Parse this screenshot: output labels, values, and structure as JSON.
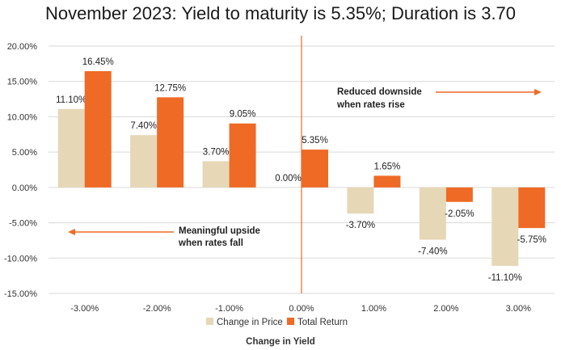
{
  "chart_data": {
    "type": "bar",
    "title": "November 2023: Yield to maturity is 5.35%; Duration is 3.70",
    "xlabel": "Change in Yield",
    "ylabel": "",
    "categories": [
      "-3.00%",
      "-2.00%",
      "-1.00%",
      "0.00%",
      "1.00%",
      "2.00%",
      "3.00%"
    ],
    "series": [
      {
        "name": "Change in Price",
        "values": [
          11.1,
          7.4,
          3.7,
          0.0,
          -3.7,
          -7.4,
          -11.1
        ],
        "labels": [
          "11.10%",
          "7.40%",
          "3.70%",
          "0.00%",
          "-3.70%",
          "-7.40%",
          "-11.10%"
        ]
      },
      {
        "name": "Total Return",
        "values": [
          16.45,
          12.75,
          9.05,
          5.35,
          1.65,
          -2.05,
          -5.75
        ],
        "labels": [
          "16.45%",
          "12.75%",
          "9.05%",
          "5.35%",
          "1.65%",
          "-2.05%",
          "-5.75%"
        ]
      }
    ],
    "ylim": [
      -15,
      20
    ],
    "yticks": [
      {
        "value": 20,
        "label": "20.00%"
      },
      {
        "value": 15,
        "label": "15.00%"
      },
      {
        "value": 10,
        "label": "10.00%"
      },
      {
        "value": 5,
        "label": "5.00%"
      },
      {
        "value": 0,
        "label": "0.00%"
      },
      {
        "value": -5,
        "label": "-5.00%"
      },
      {
        "value": -10,
        "label": "-10.00%"
      },
      {
        "value": -15,
        "label": "-15.00%"
      }
    ],
    "grid": true,
    "legend_position": "bottom",
    "colors": {
      "change_in_price": "#e6d7b6",
      "total_return": "#ee6a25",
      "grid": "#d9d9d9",
      "divider": "#ee6a25"
    },
    "annotations": [
      {
        "lines": [
          "Reduced downside",
          "when rates rise"
        ],
        "arrow": "right"
      },
      {
        "lines": [
          "Meaningful upside",
          "when rates fall"
        ],
        "arrow": "left"
      }
    ]
  }
}
